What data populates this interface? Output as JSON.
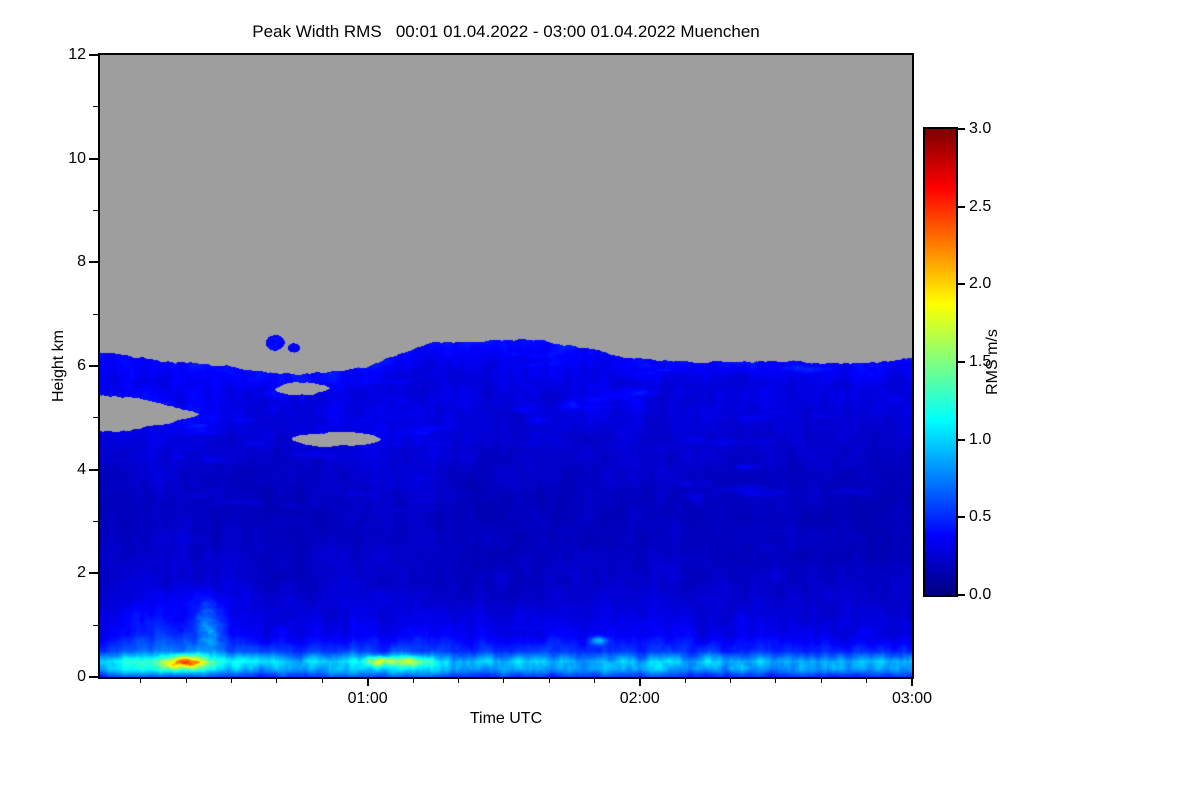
{
  "chart_data": {
    "type": "heatmap",
    "title": "Peak Width RMS   00:01 01.04.2022 - 03:00 01.04.2022 Muenchen",
    "x_axis": {
      "label": "Time UTC",
      "start_hours": 0.0167,
      "end_hours": 3.0,
      "minor_tick_minutes": 10,
      "ticks": [
        {
          "t": 1.0,
          "label": "01:00"
        },
        {
          "t": 2.0,
          "label": "02:00"
        },
        {
          "t": 3.0,
          "label": "03:00"
        }
      ]
    },
    "y_axis": {
      "label": "Height km",
      "range_km": [
        0,
        12
      ],
      "ticks": [
        {
          "km": 0,
          "label": "0"
        },
        {
          "km": 2,
          "label": "2"
        },
        {
          "km": 4,
          "label": "4"
        },
        {
          "km": 6,
          "label": "6"
        },
        {
          "km": 8,
          "label": "8"
        },
        {
          "km": 10,
          "label": "10"
        },
        {
          "km": 12,
          "label": "12"
        }
      ]
    },
    "colorbar": {
      "label": "RMS m/s",
      "min": 0.0,
      "max": 3.0,
      "colormap": "jet",
      "ticks": [
        {
          "v": 3.0,
          "label": "3.0"
        },
        {
          "v": 2.5,
          "label": "2.5"
        },
        {
          "v": 2.0,
          "label": "2.0"
        },
        {
          "v": 1.5,
          "label": "1.5"
        },
        {
          "v": 1.0,
          "label": "1.0"
        },
        {
          "v": 0.5,
          "label": "0.5"
        },
        {
          "v": 0.0,
          "label": "0.0"
        }
      ]
    },
    "no_data_color": "#9e9e9e",
    "grid": {
      "time_hours": [
        0,
        0.25,
        0.5,
        0.75,
        1.0,
        1.25,
        1.5,
        1.75,
        2.0,
        2.25,
        2.5,
        2.75,
        3.0
      ],
      "height_km": [
        0,
        0.15,
        0.3,
        0.5,
        0.8,
        1.2,
        1.8,
        2.5,
        3.2,
        4.0,
        4.6,
        5.1,
        5.6,
        6.0,
        6.5
      ],
      "values": [
        [
          0.5,
          0.6,
          0.55,
          0.5,
          0.6,
          0.55,
          0.5,
          0.5,
          0.55,
          0.5,
          0.5,
          0.45,
          0.5
        ],
        [
          0.9,
          1.1,
          0.95,
          0.85,
          1.0,
          0.95,
          0.85,
          0.85,
          0.9,
          0.85,
          0.8,
          0.8,
          0.85
        ],
        [
          1.0,
          1.2,
          1.05,
          0.95,
          1.1,
          1.05,
          0.95,
          0.95,
          1.0,
          0.95,
          0.9,
          0.9,
          0.95
        ],
        [
          0.5,
          0.7,
          0.55,
          0.5,
          0.6,
          0.55,
          0.5,
          0.55,
          0.55,
          0.5,
          0.5,
          0.45,
          0.5
        ],
        [
          0.32,
          0.5,
          0.38,
          0.32,
          0.38,
          0.35,
          0.32,
          0.35,
          0.35,
          0.33,
          0.33,
          0.3,
          0.32
        ],
        [
          0.25,
          0.42,
          0.3,
          0.25,
          0.3,
          0.27,
          0.25,
          0.28,
          0.28,
          0.27,
          0.27,
          0.24,
          0.25
        ],
        [
          0.2,
          0.3,
          0.24,
          0.2,
          0.24,
          0.22,
          0.2,
          0.22,
          0.22,
          0.22,
          0.22,
          0.2,
          0.2
        ],
        [
          0.18,
          0.22,
          0.2,
          0.18,
          0.22,
          0.2,
          0.18,
          0.2,
          0.2,
          0.2,
          0.2,
          0.18,
          0.18
        ],
        [
          0.17,
          0.2,
          0.19,
          0.17,
          0.22,
          0.2,
          0.17,
          0.19,
          0.19,
          0.19,
          0.19,
          0.17,
          0.17
        ],
        [
          0.2,
          0.24,
          0.22,
          0.2,
          0.26,
          0.23,
          0.2,
          0.21,
          0.21,
          0.21,
          0.21,
          0.19,
          0.2
        ],
        [
          0.28,
          0.3,
          0.27,
          0.25,
          0.3,
          0.26,
          0.23,
          0.24,
          0.24,
          0.23,
          0.23,
          0.22,
          0.23
        ],
        [
          0.38,
          0.36,
          0.32,
          0.3,
          0.32,
          0.28,
          0.26,
          0.27,
          0.27,
          0.26,
          0.26,
          0.25,
          0.26
        ],
        [
          0.34,
          0.32,
          0.3,
          0.3,
          0.3,
          0.28,
          0.27,
          0.28,
          0.28,
          0.27,
          0.28,
          0.27,
          0.28
        ],
        [
          0.3,
          0.28,
          0.27,
          0.25,
          0.28,
          0.3,
          0.3,
          0.3,
          0.28,
          0.26,
          0.27,
          0.26,
          0.27
        ],
        [
          0.22,
          0.22,
          0.22,
          0.22,
          0.22,
          0.26,
          0.26,
          0.26,
          0.22,
          0.22,
          0.22,
          0.22,
          0.22
        ]
      ]
    },
    "cloud_top_km": [
      6.3,
      6.1,
      6.0,
      5.8,
      6.0,
      6.45,
      6.5,
      6.4,
      6.1,
      6.05,
      6.1,
      6.05,
      6.15
    ],
    "cloud_gaps": [
      {
        "t_start": 0.0,
        "t_end": 0.38,
        "h_bottom": 4.7,
        "h_top": 5.45,
        "taper": "right"
      },
      {
        "t_start": 0.72,
        "t_end": 1.05,
        "h_bottom": 4.45,
        "h_top": 4.72,
        "taper": "both"
      },
      {
        "t_start": 0.66,
        "t_end": 0.86,
        "h_bottom": 5.45,
        "h_top": 5.68,
        "taper": "both"
      }
    ],
    "detached_blobs": [
      {
        "t": 0.66,
        "h": 6.45,
        "rt": 0.035,
        "rh": 0.15
      },
      {
        "t": 0.73,
        "h": 6.35,
        "rt": 0.022,
        "rh": 0.09
      }
    ],
    "hotspots": [
      {
        "t": 0.33,
        "h": 0.28,
        "rt": 0.07,
        "rh": 0.13,
        "v": 1.0
      },
      {
        "t": 0.42,
        "h": 1.0,
        "rt": 0.05,
        "rh": 0.55,
        "v": 0.35
      },
      {
        "t": 1.05,
        "h": 0.3,
        "rt": 0.05,
        "rh": 0.1,
        "v": 0.75
      },
      {
        "t": 1.17,
        "h": 0.3,
        "rt": 0.05,
        "rh": 0.1,
        "v": 0.6
      },
      {
        "t": 1.85,
        "h": 0.7,
        "rt": 0.03,
        "rh": 0.08,
        "v": 0.45
      }
    ]
  }
}
